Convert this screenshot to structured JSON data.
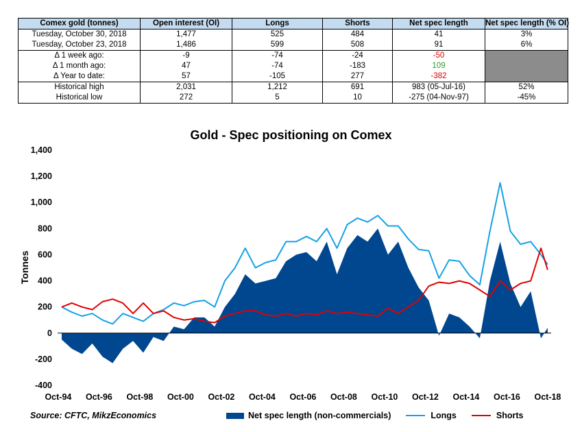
{
  "table": {
    "headers": [
      "Comex gold (tonnes)",
      "Open interest (OI)",
      "Longs",
      "Shorts",
      "Net spec length",
      "Net spec length (% OI)"
    ],
    "rows": [
      {
        "label": "Tuesday, October 30, 2018",
        "oi": "1,477",
        "longs": "525",
        "shorts": "484",
        "net": "41",
        "pct": "3%"
      },
      {
        "label": "Tuesday, October 23, 2018",
        "oi": "1,486",
        "longs": "599",
        "shorts": "508",
        "net": "91",
        "pct": "6%"
      },
      {
        "label": "Δ 1 week ago:",
        "oi": "-9",
        "longs": "-74",
        "shorts": "-24",
        "net": "-50",
        "pct": ""
      },
      {
        "label": "Δ 1 month ago:",
        "oi": "47",
        "longs": "-74",
        "shorts": "-183",
        "net": "109",
        "pct": ""
      },
      {
        "label": "Δ Year to date:",
        "oi": "57",
        "longs": "-105",
        "shorts": "277",
        "net": "-382",
        "pct": ""
      },
      {
        "label": "Historical high",
        "oi": "2,031",
        "longs": "1,212",
        "shorts": "691",
        "net": "983  (05-Jul-16)",
        "pct": "52%"
      },
      {
        "label": "Historical low",
        "oi": "272",
        "longs": "5",
        "shorts": "10",
        "net": "-275  (04-Nov-97)",
        "pct": "-45%"
      }
    ],
    "colors": {
      "header_bg": "#c5dcf0",
      "negative": "#e00000",
      "positive": "#2a9c2a",
      "grey_cell": "#8c8c8c"
    }
  },
  "chart_data": {
    "type": "area",
    "title": "Gold - Spec positioning on Comex",
    "ylabel": "Tonnes",
    "xlabel": "",
    "ylim": [
      -400,
      1400
    ],
    "yticks": [
      -400,
      -200,
      0,
      200,
      400,
      600,
      800,
      1000,
      1200,
      1400
    ],
    "ytick_labels": [
      "-400",
      "-200",
      "0",
      "200",
      "400",
      "600",
      "800",
      "1,000",
      "1,200",
      "1,400"
    ],
    "xlim": [
      1994.8,
      2019.0
    ],
    "xticks": [
      1994.83,
      1996.83,
      1998.83,
      2000.83,
      2002.83,
      2004.83,
      2006.83,
      2008.83,
      2010.83,
      2012.83,
      2014.83,
      2016.83,
      2018.83
    ],
    "xtick_labels": [
      "Oct-94",
      "Oct-96",
      "Oct-98",
      "Oct-00",
      "Oct-02",
      "Oct-04",
      "Oct-06",
      "Oct-08",
      "Oct-10",
      "Oct-12",
      "Oct-14",
      "Oct-16",
      "Oct-18"
    ],
    "grid": false,
    "legend_position": "bottom",
    "x": [
      1995.0,
      1995.5,
      1996.0,
      1996.5,
      1997.0,
      1997.5,
      1998.0,
      1998.5,
      1999.0,
      1999.5,
      2000.0,
      2000.5,
      2001.0,
      2001.5,
      2002.0,
      2002.5,
      2003.0,
      2003.5,
      2004.0,
      2004.5,
      2005.0,
      2005.5,
      2006.0,
      2006.5,
      2007.0,
      2007.5,
      2008.0,
      2008.5,
      2009.0,
      2009.5,
      2010.0,
      2010.5,
      2011.0,
      2011.5,
      2012.0,
      2012.5,
      2013.0,
      2013.5,
      2014.0,
      2014.5,
      2015.0,
      2015.5,
      2016.0,
      2016.5,
      2017.0,
      2017.5,
      2018.0,
      2018.5,
      2018.83
    ],
    "series": [
      {
        "name": "Net spec length (non-commercials)",
        "kind": "area",
        "color": "#00478f",
        "values": [
          -50,
          -120,
          -160,
          -80,
          -180,
          -230,
          -120,
          -60,
          -150,
          -30,
          -60,
          50,
          30,
          120,
          120,
          50,
          200,
          300,
          450,
          380,
          400,
          420,
          550,
          600,
          620,
          550,
          700,
          450,
          650,
          750,
          700,
          800,
          600,
          700,
          500,
          350,
          250,
          -20,
          150,
          120,
          50,
          -40,
          400,
          700,
          380,
          200,
          320,
          -40,
          41
        ]
      },
      {
        "name": "Longs",
        "kind": "line",
        "color": "#14a0e6",
        "values": [
          200,
          160,
          130,
          150,
          100,
          70,
          150,
          120,
          90,
          150,
          180,
          230,
          210,
          240,
          250,
          200,
          400,
          500,
          650,
          500,
          540,
          560,
          700,
          700,
          740,
          700,
          800,
          650,
          830,
          880,
          850,
          900,
          820,
          820,
          720,
          640,
          630,
          420,
          560,
          550,
          440,
          370,
          780,
          1150,
          780,
          680,
          700,
          600,
          525
        ]
      },
      {
        "name": "Shorts",
        "kind": "line",
        "color": "#e00000",
        "values": [
          200,
          230,
          200,
          180,
          240,
          260,
          230,
          150,
          230,
          150,
          170,
          120,
          100,
          110,
          90,
          80,
          130,
          150,
          170,
          170,
          140,
          130,
          150,
          130,
          150,
          140,
          170,
          150,
          160,
          150,
          140,
          130,
          190,
          150,
          200,
          250,
          360,
          390,
          380,
          400,
          380,
          330,
          280,
          400,
          330,
          380,
          400,
          650,
          484
        ]
      }
    ]
  },
  "footer": {
    "source": "Source: CFTC, MikzEconomics",
    "legend": [
      {
        "label": "Net spec length (non-commercials)",
        "color": "#00478f"
      },
      {
        "label": "Longs",
        "color": "#14a0e6"
      },
      {
        "label": "Shorts",
        "color": "#e00000"
      }
    ]
  }
}
